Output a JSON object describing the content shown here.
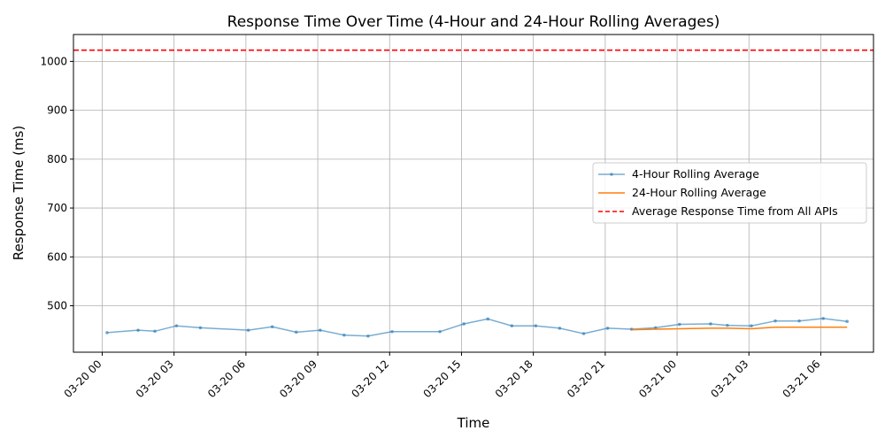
{
  "chart_data": {
    "type": "line",
    "title": "Response Time Over Time (4-Hour and 24-Hour Rolling Averages)",
    "xlabel": "Time",
    "ylabel": "Response Time (ms)",
    "x_range_hours": [
      -1.2,
      32.2
    ],
    "x_origin": "03-20 00",
    "ylim": [
      405,
      1055
    ],
    "grid": true,
    "legend_position": "center-right",
    "x_ticks": [
      {
        "hours": 0,
        "label": "03-20 00"
      },
      {
        "hours": 3,
        "label": "03-20 03"
      },
      {
        "hours": 6,
        "label": "03-20 06"
      },
      {
        "hours": 9,
        "label": "03-20 09"
      },
      {
        "hours": 12,
        "label": "03-20 12"
      },
      {
        "hours": 15,
        "label": "03-20 15"
      },
      {
        "hours": 18,
        "label": "03-20 18"
      },
      {
        "hours": 21,
        "label": "03-20 21"
      },
      {
        "hours": 24,
        "label": "03-21 00"
      },
      {
        "hours": 27,
        "label": "03-21 03"
      },
      {
        "hours": 30,
        "label": "03-21 06"
      }
    ],
    "y_ticks": [
      500,
      600,
      700,
      800,
      900,
      1000
    ],
    "series": [
      {
        "name": "4-Hour Rolling Average",
        "color": "#1f77b4",
        "style": "line-markers",
        "points": [
          [
            0.2,
            445
          ],
          [
            1.5,
            450
          ],
          [
            2.2,
            448
          ],
          [
            3.1,
            459
          ],
          [
            4.1,
            455
          ],
          [
            6.1,
            450
          ],
          [
            7.1,
            457
          ],
          [
            8.1,
            446
          ],
          [
            9.1,
            450
          ],
          [
            10.1,
            440
          ],
          [
            11.1,
            438
          ],
          [
            12.1,
            447
          ],
          [
            14.1,
            447
          ],
          [
            15.1,
            463
          ],
          [
            16.1,
            473
          ],
          [
            17.1,
            459
          ],
          [
            18.1,
            459
          ],
          [
            19.1,
            454
          ],
          [
            20.1,
            443
          ],
          [
            21.1,
            454
          ],
          [
            22.1,
            452
          ],
          [
            23.1,
            455
          ],
          [
            24.1,
            462
          ],
          [
            25.4,
            463
          ],
          [
            26.1,
            460
          ],
          [
            27.1,
            459
          ],
          [
            28.1,
            469
          ],
          [
            29.1,
            469
          ],
          [
            30.1,
            474
          ],
          [
            31.1,
            468
          ]
        ]
      },
      {
        "name": "24-Hour Rolling Average",
        "color": "#ff7f0e",
        "style": "line",
        "points": [
          [
            22.1,
            451
          ],
          [
            23.1,
            452
          ],
          [
            24.1,
            453
          ],
          [
            25.4,
            454
          ],
          [
            26.1,
            454
          ],
          [
            27.1,
            453
          ],
          [
            28.1,
            456
          ],
          [
            29.1,
            456
          ],
          [
            30.1,
            456
          ],
          [
            31.1,
            456
          ]
        ]
      }
    ],
    "reference_line": {
      "name": "Average Response Time from All APIs",
      "value": 1023,
      "color": "#ff0000",
      "style": "dashed"
    }
  }
}
